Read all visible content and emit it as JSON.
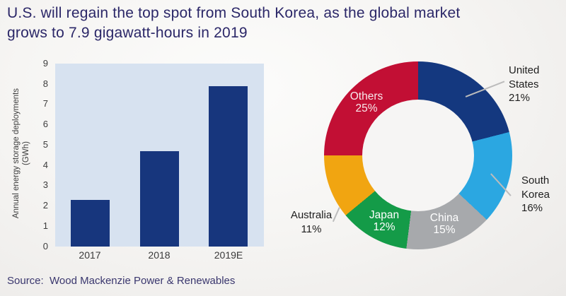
{
  "page": {
    "title_line1": "U.S. will regain the top spot from South Korea, as the global market",
    "title_line2": "grows to 7.9 gigawatt-hours in 2019",
    "source": "Source:  Wood Mackenzie Power & Renewables",
    "title_color": "#2b2768",
    "background_color": "#f4f3f1"
  },
  "chart_data": [
    {
      "type": "bar",
      "title": "",
      "categories": [
        "2017",
        "2018",
        "2019E"
      ],
      "values": [
        2.3,
        4.7,
        7.9
      ],
      "xlabel": "",
      "ylabel": "Annual energy storage deployments (GWh)",
      "ylabel_lines": [
        "Annual energy storage deployments",
        "(GWh)"
      ],
      "ylim": [
        0,
        9
      ],
      "yticks": [
        0,
        1,
        2,
        3,
        4,
        5,
        6,
        7,
        8,
        9
      ],
      "grid": false,
      "bar_color": "#17367d",
      "plot_background": "#d7e2f0"
    },
    {
      "type": "pie",
      "subtype": "donut",
      "start_angle_deg": 0,
      "direction": "clockwise",
      "slices": [
        {
          "label": "United States",
          "pct": "21%",
          "value": 21,
          "color": "#14387f",
          "label_placement": "outside"
        },
        {
          "label": "South Korea",
          "pct": "16%",
          "value": 16,
          "color": "#2ba7e1",
          "label_placement": "outside"
        },
        {
          "label": "China",
          "pct": "15%",
          "value": 15,
          "color": "#a7a9ac",
          "label_placement": "inside"
        },
        {
          "label": "Japan",
          "pct": "12%",
          "value": 12,
          "color": "#149b48",
          "label_placement": "inside"
        },
        {
          "label": "Australia",
          "pct": "11%",
          "value": 11,
          "color": "#f1a511",
          "label_placement": "outside"
        },
        {
          "label": "Others",
          "pct": "25%",
          "value": 25,
          "color": "#c20f34",
          "label_placement": "inside"
        }
      ]
    }
  ]
}
